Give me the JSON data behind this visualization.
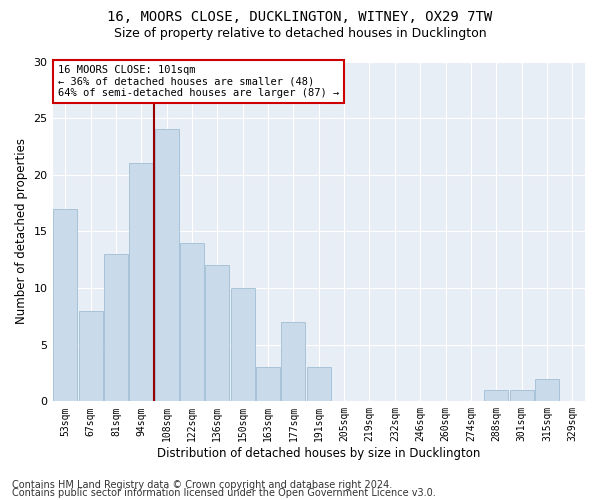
{
  "title1": "16, MOORS CLOSE, DUCKLINGTON, WITNEY, OX29 7TW",
  "title2": "Size of property relative to detached houses in Ducklington",
  "xlabel": "Distribution of detached houses by size in Ducklington",
  "ylabel": "Number of detached properties",
  "categories": [
    "53sqm",
    "67sqm",
    "81sqm",
    "94sqm",
    "108sqm",
    "122sqm",
    "136sqm",
    "150sqm",
    "163sqm",
    "177sqm",
    "191sqm",
    "205sqm",
    "219sqm",
    "232sqm",
    "246sqm",
    "260sqm",
    "274sqm",
    "288sqm",
    "301sqm",
    "315sqm",
    "329sqm"
  ],
  "values": [
    17,
    8,
    13,
    21,
    24,
    14,
    12,
    10,
    3,
    7,
    3,
    0,
    0,
    0,
    0,
    0,
    0,
    1,
    1,
    2,
    0
  ],
  "bar_color": "#c9daea",
  "bar_edge_color": "#a8c4d8",
  "vline_x": 3.5,
  "vline_color": "#990000",
  "annotation_text": "16 MOORS CLOSE: 101sqm\n← 36% of detached houses are smaller (48)\n64% of semi-detached houses are larger (87) →",
  "annotation_box_color": "#ffffff",
  "annotation_box_edge_color": "#cc0000",
  "ylim": [
    0,
    30
  ],
  "yticks": [
    0,
    5,
    10,
    15,
    20,
    25,
    30
  ],
  "footer1": "Contains HM Land Registry data © Crown copyright and database right 2024.",
  "footer2": "Contains public sector information licensed under the Open Government Licence v3.0.",
  "plot_bg_color": "#e8eef5",
  "title1_fontsize": 10,
  "title2_fontsize": 9,
  "xlabel_fontsize": 8.5,
  "ylabel_fontsize": 8.5,
  "footer_fontsize": 7
}
